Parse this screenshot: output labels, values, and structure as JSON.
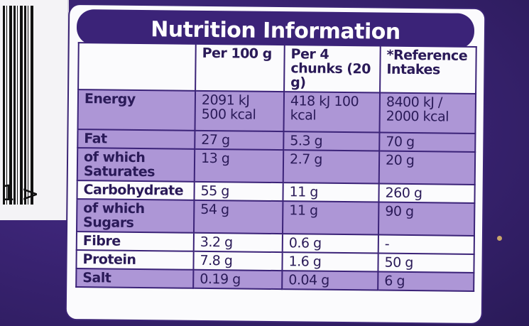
{
  "barcode": {
    "digit": "1",
    "chevron": ">"
  },
  "title": "Nutrition Information",
  "columns": [
    "",
    "Per 100 g",
    "Per 4 chunks (20 g)",
    "*Reference Intakes"
  ],
  "rows": [
    {
      "label": "Energy",
      "per100": "2091 kJ 500 kcal",
      "perPortion": "418 kJ 100 kcal",
      "ri": "8400 kJ / 2000 kcal"
    },
    {
      "label": "Fat",
      "per100": "27 g",
      "perPortion": "5.3 g",
      "ri": "70 g"
    },
    {
      "label": "of which Saturates",
      "per100": "13 g",
      "perPortion": "2.7 g",
      "ri": "20 g"
    },
    {
      "label": "Carbohydrate",
      "per100": "55 g",
      "perPortion": "11 g",
      "ri": "260 g"
    },
    {
      "label": "of which Sugars",
      "per100": "54 g",
      "perPortion": "11 g",
      "ri": "90 g"
    },
    {
      "label": "Fibre",
      "per100": "3.2 g",
      "perPortion": "0.6 g",
      "ri": "-"
    },
    {
      "label": "Protein",
      "per100": "7.8 g",
      "perPortion": "1.6 g",
      "ri": "50 g"
    },
    {
      "label": "Salt",
      "per100": "0.19 g",
      "perPortion": "0.04 g",
      "ri": "6 g"
    }
  ],
  "colors": {
    "wrapper": "#3b2475",
    "shade": "#ad96d6",
    "panel": "#fbfbfd",
    "text": "#2a1a58"
  }
}
